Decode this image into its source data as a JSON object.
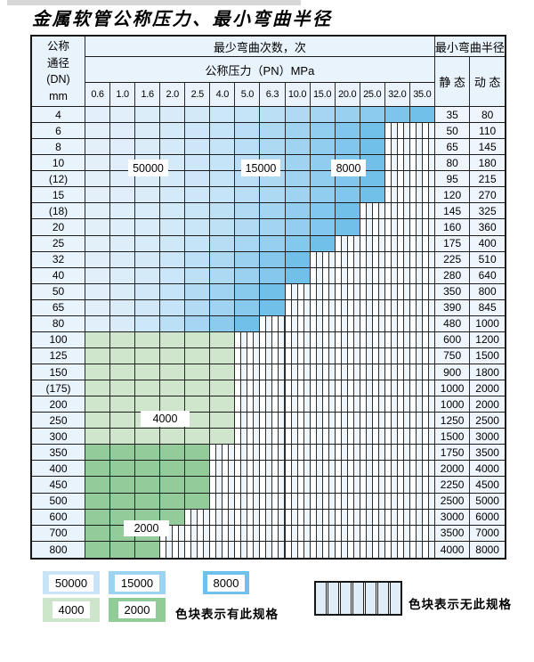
{
  "page_title": "金属软管公称压力、最小弯曲半径",
  "table": {
    "dn_header_lines": [
      "公称",
      "通径",
      "(DN)",
      "mm"
    ],
    "bend_cycles_header": "最少弯曲次数，次",
    "pressure_header": "公称压力（PN）MPa",
    "radius_header": "最小弯曲半径",
    "static_header": "静 态",
    "dynamic_header": "动 态",
    "pressure_columns": [
      "0.6",
      "1.0",
      "1.6",
      "2.0",
      "2.5",
      "4.0",
      "5.0",
      "6.3",
      "10.0",
      "15.0",
      "20.0",
      "25.0",
      "32.0",
      "35.0"
    ],
    "rows": [
      {
        "dn": "4",
        "zone": "blue",
        "spec_cols": 14,
        "static": "35",
        "dynamic": "80"
      },
      {
        "dn": "6",
        "zone": "blue",
        "spec_cols": 12,
        "static": "50",
        "dynamic": "110"
      },
      {
        "dn": "8",
        "zone": "blue",
        "spec_cols": 12,
        "static": "65",
        "dynamic": "145"
      },
      {
        "dn": "10",
        "zone": "blue",
        "spec_cols": 12,
        "static": "80",
        "dynamic": "180"
      },
      {
        "dn": "(12)",
        "zone": "blue",
        "spec_cols": 12,
        "static": "95",
        "dynamic": "215"
      },
      {
        "dn": "15",
        "zone": "blue",
        "spec_cols": 12,
        "static": "120",
        "dynamic": "270"
      },
      {
        "dn": "(18)",
        "zone": "blue",
        "spec_cols": 11,
        "static": "145",
        "dynamic": "325"
      },
      {
        "dn": "20",
        "zone": "blue",
        "spec_cols": 11,
        "static": "160",
        "dynamic": "360"
      },
      {
        "dn": "25",
        "zone": "blue",
        "spec_cols": 10,
        "static": "175",
        "dynamic": "400"
      },
      {
        "dn": "32",
        "zone": "blue",
        "spec_cols": 9,
        "static": "225",
        "dynamic": "510"
      },
      {
        "dn": "40",
        "zone": "blue",
        "spec_cols": 9,
        "static": "280",
        "dynamic": "640"
      },
      {
        "dn": "50",
        "zone": "blue",
        "spec_cols": 8,
        "static": "350",
        "dynamic": "800"
      },
      {
        "dn": "65",
        "zone": "blue",
        "spec_cols": 8,
        "static": "390",
        "dynamic": "845"
      },
      {
        "dn": "80",
        "zone": "blue",
        "spec_cols": 7,
        "static": "480",
        "dynamic": "1000"
      },
      {
        "dn": "100",
        "zone": "green_light",
        "spec_cols": 6,
        "static": "600",
        "dynamic": "1200"
      },
      {
        "dn": "125",
        "zone": "green_light",
        "spec_cols": 6,
        "static": "750",
        "dynamic": "1500"
      },
      {
        "dn": "150",
        "zone": "green_light",
        "spec_cols": 6,
        "static": "900",
        "dynamic": "1800"
      },
      {
        "dn": "(175)",
        "zone": "green_light",
        "spec_cols": 6,
        "static": "1000",
        "dynamic": "2000"
      },
      {
        "dn": "200",
        "zone": "green_light",
        "spec_cols": 6,
        "static": "1000",
        "dynamic": "2000"
      },
      {
        "dn": "250",
        "zone": "green_light",
        "spec_cols": 6,
        "static": "1250",
        "dynamic": "2500"
      },
      {
        "dn": "300",
        "zone": "green_light",
        "spec_cols": 6,
        "static": "1500",
        "dynamic": "3000"
      },
      {
        "dn": "350",
        "zone": "green_dark",
        "spec_cols": 5,
        "static": "1750",
        "dynamic": "3500"
      },
      {
        "dn": "400",
        "zone": "green_dark",
        "spec_cols": 5,
        "static": "2000",
        "dynamic": "4000"
      },
      {
        "dn": "450",
        "zone": "green_dark",
        "spec_cols": 5,
        "static": "2250",
        "dynamic": "4500"
      },
      {
        "dn": "500",
        "zone": "green_dark",
        "spec_cols": 5,
        "static": "2500",
        "dynamic": "5000"
      },
      {
        "dn": "600",
        "zone": "green_dark",
        "spec_cols": 4,
        "static": "3000",
        "dynamic": "6000"
      },
      {
        "dn": "700",
        "zone": "green_dark",
        "spec_cols": 3,
        "static": "3500",
        "dynamic": "7000"
      },
      {
        "dn": "800",
        "zone": "green_dark",
        "spec_cols": 3,
        "static": "4000",
        "dynamic": "8000"
      }
    ],
    "zone_labels": [
      {
        "id": "b50000",
        "text": "50000"
      },
      {
        "id": "b15000",
        "text": "15000"
      },
      {
        "id": "b8000",
        "text": "8000"
      },
      {
        "id": "g4000",
        "text": "4000"
      },
      {
        "id": "g2000",
        "text": "2000"
      }
    ]
  },
  "legend": {
    "spec_items": [
      {
        "label": "50000",
        "color": "#c9e3f7"
      },
      {
        "label": "15000",
        "color": "#9bd3f1"
      },
      {
        "label": "8000",
        "color": "#6fc1eb"
      },
      {
        "label": "4000",
        "color": "#cde5cb"
      },
      {
        "label": "2000",
        "color": "#90cb98"
      }
    ],
    "has_spec_text": "色块表示有此规格",
    "no_spec_text": "色块表示无此规格"
  },
  "colors": {
    "green_light": "#cfe6cd",
    "green_dark": "#93cb9b",
    "blue_lightest": "#e7f2fb",
    "blue_darkest": "#70c0ea",
    "header_bg": "#e9f3fb"
  }
}
